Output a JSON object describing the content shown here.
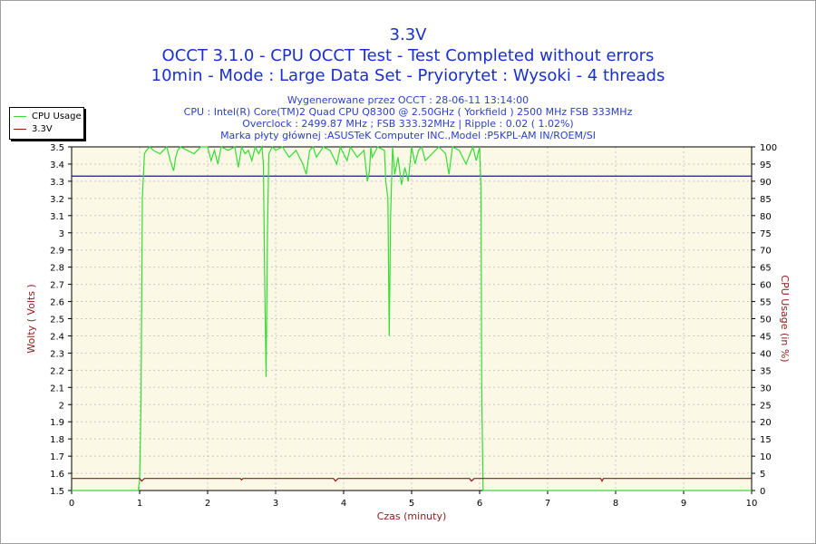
{
  "header": {
    "title": "3.3V",
    "subtitle1": "OCCT 3.1.0 - CPU OCCT Test - Test Completed without errors",
    "subtitle2": "10min - Mode : Large Data Set - Pryiorytet : Wysoki - 4 threads",
    "info1": "Wygenerowane przez OCCT : 28-06-11 13:14:00",
    "info2": "CPU : Intel(R) Core(TM)2 Quad CPU Q8300 @ 2.50GHz ( Yorkfield ) 2500 MHz FSB 333MHz",
    "info3": "Overclock : 2499.87 MHz ; FSB 333.32MHz | Ripple : 0.02 ( 1.02%)",
    "info4": "Marka płyty głównej :ASUSTeK Computer INC.,Model :P5KPL-AM IN/ROEM/SI"
  },
  "legend": [
    {
      "name": "CPU Usage",
      "color": "#33dd33"
    },
    {
      "name": "3.3V",
      "color": "#8b1a1a"
    }
  ],
  "chart_data": {
    "type": "line",
    "xlabel": "Czas (minuty)",
    "ylabel": "Wolty ( Volts )",
    "y2label": "CPU Usage (in %)",
    "xlim": [
      0,
      10
    ],
    "ylim": [
      1.5,
      3.5
    ],
    "y2lim": [
      0,
      100
    ],
    "xticks": [
      "0",
      "1",
      "2",
      "3",
      "4",
      "5",
      "6",
      "7",
      "8",
      "9",
      "10"
    ],
    "yticks": [
      "1.5",
      "1.6",
      "1.7",
      "1.8",
      "1.9",
      "2",
      "2.1",
      "2.2",
      "2.3",
      "2.4",
      "2.5",
      "2.6",
      "2.7",
      "2.8",
      "2.9",
      "3",
      "3.1",
      "3.2",
      "3.3",
      "3.4",
      "3.5"
    ],
    "y2ticks": [
      "0",
      "5",
      "10",
      "15",
      "20",
      "25",
      "30",
      "35",
      "40",
      "45",
      "50",
      "55",
      "60",
      "65",
      "70",
      "75",
      "80",
      "85",
      "90",
      "95",
      "100"
    ],
    "grid": true,
    "hline_value": 3.33,
    "series": [
      {
        "name": "CPU Usage",
        "axis": "right",
        "color": "#33dd33",
        "x": [
          0,
          0.98,
          1.0,
          1.02,
          1.04,
          1.07,
          1.1,
          1.15,
          1.2,
          1.3,
          1.4,
          1.45,
          1.5,
          1.53,
          1.56,
          1.6,
          1.7,
          1.8,
          1.9,
          2.0,
          2.05,
          2.1,
          2.15,
          2.2,
          2.3,
          2.4,
          2.45,
          2.5,
          2.55,
          2.6,
          2.65,
          2.7,
          2.75,
          2.8,
          2.82,
          2.84,
          2.86,
          2.88,
          2.9,
          2.95,
          3.0,
          3.1,
          3.2,
          3.3,
          3.4,
          3.45,
          3.5,
          3.55,
          3.6,
          3.7,
          3.8,
          3.9,
          3.95,
          4.0,
          4.05,
          4.1,
          4.2,
          4.3,
          4.35,
          4.38,
          4.4,
          4.42,
          4.5,
          4.6,
          4.62,
          4.65,
          4.67,
          4.69,
          4.72,
          4.75,
          4.8,
          4.85,
          4.9,
          4.95,
          5.0,
          5.05,
          5.1,
          5.15,
          5.2,
          5.3,
          5.4,
          5.5,
          5.55,
          5.6,
          5.7,
          5.8,
          5.9,
          5.95,
          6.0,
          6.02,
          6.03,
          6.05,
          6.1,
          10
        ],
        "y": [
          0,
          0,
          3,
          25,
          85,
          98,
          99,
          100,
          99,
          98,
          100,
          96,
          93,
          97,
          99,
          100,
          99,
          98,
          100,
          100,
          96,
          99,
          95,
          100,
          99,
          100,
          94,
          100,
          98,
          99,
          96,
          100,
          98,
          100,
          95,
          60,
          33,
          75,
          98,
          100,
          99,
          100,
          97,
          99,
          95,
          92,
          99,
          100,
          97,
          100,
          99,
          95,
          100,
          98,
          96,
          100,
          97,
          99,
          90,
          93,
          100,
          97,
          100,
          99,
          90,
          85,
          45,
          80,
          100,
          92,
          97,
          89,
          94,
          90,
          100,
          95,
          99,
          100,
          96,
          98,
          100,
          98,
          92,
          100,
          99,
          95,
          100,
          96,
          100,
          88,
          30,
          0,
          0,
          0
        ]
      },
      {
        "name": "3.3V",
        "axis": "left",
        "color": "#8b1a1a",
        "x": [
          0,
          1.0,
          1.03,
          1.07,
          2.48,
          2.5,
          2.52,
          3.85,
          3.88,
          3.92,
          5.85,
          5.88,
          5.92,
          7.78,
          7.8,
          7.82,
          10
        ],
        "y": [
          1.57,
          1.57,
          1.555,
          1.57,
          1.57,
          1.562,
          1.57,
          1.57,
          1.555,
          1.57,
          1.57,
          1.555,
          1.57,
          1.57,
          1.555,
          1.57,
          1.57
        ]
      }
    ]
  }
}
